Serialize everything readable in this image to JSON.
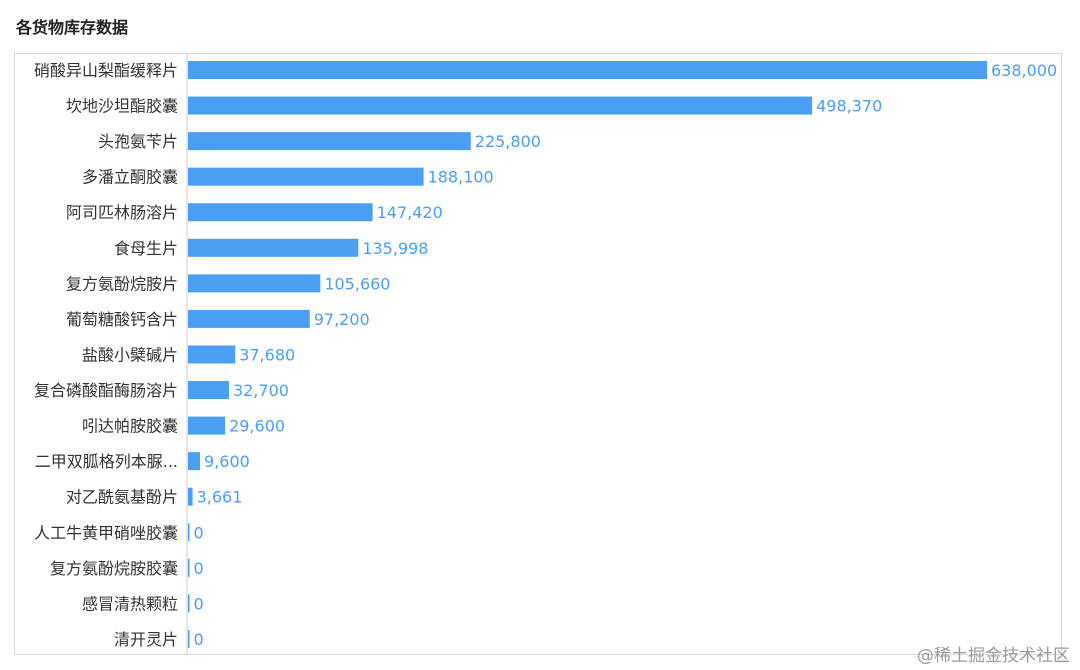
{
  "chart_data": {
    "type": "bar",
    "orientation": "horizontal",
    "title": "各货物库存数据",
    "categories": [
      "硝酸异山梨酯缓释片",
      "坎地沙坦酯胶囊",
      "头孢氨苄片",
      "多潘立酮胶囊",
      "阿司匹林肠溶片",
      "食母生片",
      "复方氨酚烷胺片",
      "葡萄糖酸钙含片",
      "盐酸小檗碱片",
      "复合磷酸酯酶肠溶片",
      "吲达帕胺胶囊",
      "二甲双胍格列本脲...",
      "对乙酰氨基酚片",
      "人工牛黄甲硝唑胶囊",
      "复方氨酚烷胺胶囊",
      "感冒清热颗粒",
      "清开灵片"
    ],
    "values": [
      638000,
      498370,
      225800,
      188100,
      147420,
      135998,
      105660,
      97200,
      37680,
      32700,
      29600,
      9600,
      3661,
      0,
      0,
      0,
      0
    ],
    "value_labels": [
      "638,000",
      "498,370",
      "225,800",
      "188,100",
      "147,420",
      "135,998",
      "105,660",
      "97,200",
      "37,680",
      "32,700",
      "29,600",
      "9,600",
      "3,661",
      "0",
      "0",
      "0",
      "0"
    ],
    "xlim": [
      0,
      638000
    ],
    "grid": false,
    "legend": "none",
    "colors": {
      "bar": "#4a9ff5",
      "value_label": "#4a9ff5",
      "category_label": "#333333",
      "axis": "#cccccc"
    }
  },
  "watermark": "@稀土掘金技术社区"
}
